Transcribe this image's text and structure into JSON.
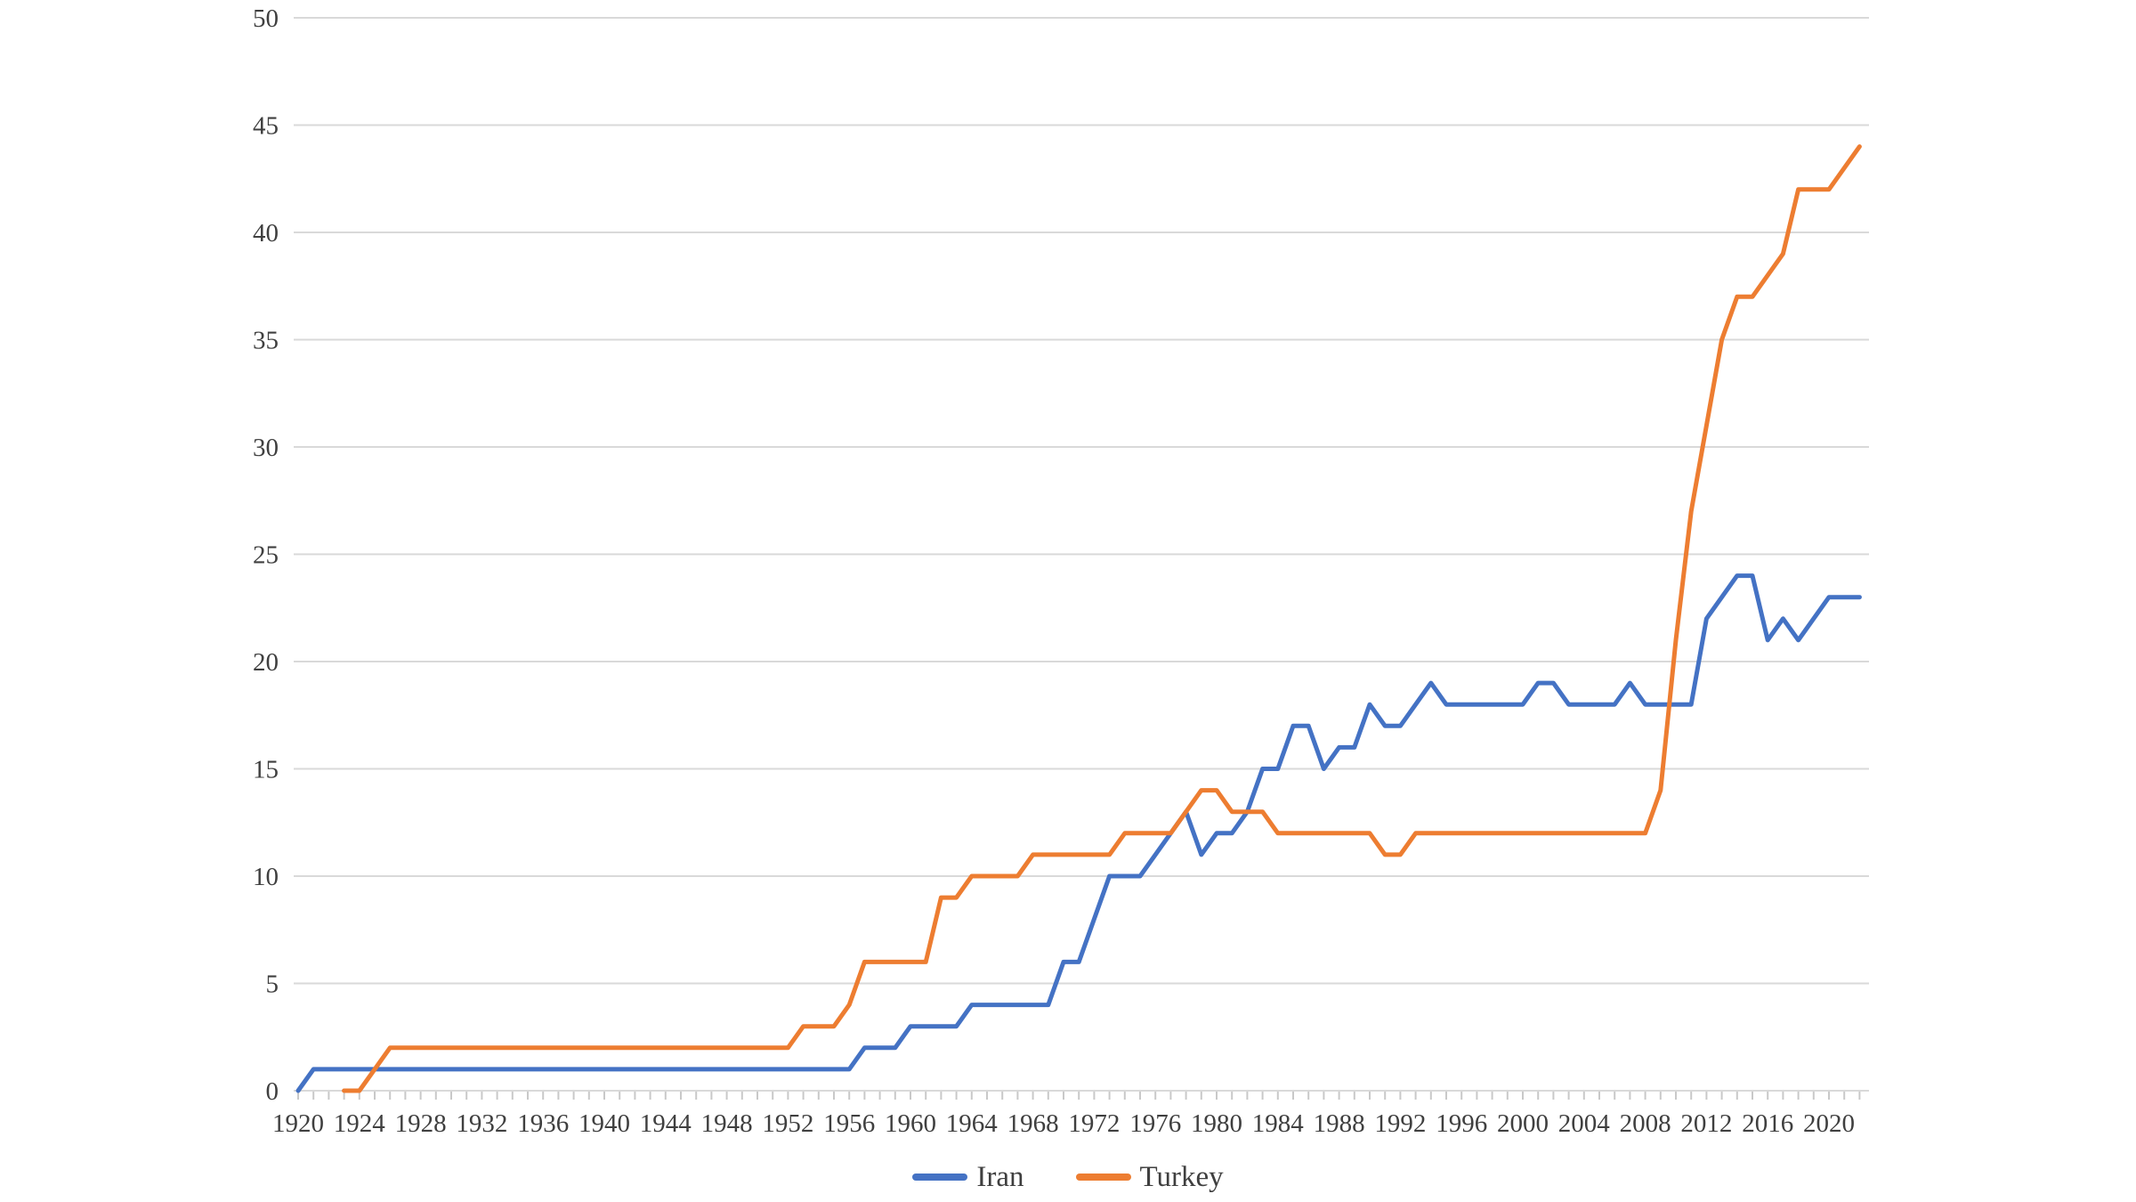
{
  "chart_data": {
    "type": "line",
    "title": "",
    "xlabel": "",
    "ylabel": "",
    "ylim": [
      0,
      50
    ],
    "grid": true,
    "legend_position": "bottom",
    "axis_line_color": "#D9D9D9",
    "tick_mark_color": "#C9C9C9",
    "label_color": "#3f3f3f",
    "y_tick_labels": [
      0,
      5,
      10,
      15,
      20,
      25,
      30,
      35,
      40,
      45,
      50
    ],
    "x_tick_labels": [
      1920,
      1924,
      1928,
      1932,
      1936,
      1940,
      1944,
      1948,
      1952,
      1956,
      1960,
      1964,
      1968,
      1972,
      1976,
      1980,
      1984,
      1988,
      1992,
      1996,
      2000,
      2004,
      2008,
      2012,
      2016,
      2020
    ],
    "categories": [
      1920,
      1921,
      1922,
      1923,
      1924,
      1925,
      1926,
      1927,
      1928,
      1929,
      1930,
      1931,
      1932,
      1933,
      1934,
      1935,
      1936,
      1937,
      1938,
      1939,
      1940,
      1941,
      1942,
      1943,
      1944,
      1945,
      1946,
      1947,
      1948,
      1949,
      1950,
      1951,
      1952,
      1953,
      1954,
      1955,
      1956,
      1957,
      1958,
      1959,
      1960,
      1961,
      1962,
      1963,
      1964,
      1965,
      1966,
      1967,
      1968,
      1969,
      1970,
      1971,
      1972,
      1973,
      1974,
      1975,
      1976,
      1977,
      1978,
      1979,
      1980,
      1981,
      1982,
      1983,
      1984,
      1985,
      1986,
      1987,
      1988,
      1989,
      1990,
      1991,
      1992,
      1993,
      1994,
      1995,
      1996,
      1997,
      1998,
      1999,
      2000,
      2001,
      2002,
      2003,
      2004,
      2005,
      2006,
      2007,
      2008,
      2009,
      2010,
      2011,
      2012,
      2013,
      2014,
      2015,
      2016,
      2017,
      2018,
      2019,
      2020,
      2021,
      2022
    ],
    "series": [
      {
        "name": "Iran",
        "color": "#4472C4",
        "values": [
          0,
          1,
          1,
          1,
          1,
          1,
          1,
          1,
          1,
          1,
          1,
          1,
          1,
          1,
          1,
          1,
          1,
          1,
          1,
          1,
          1,
          1,
          1,
          1,
          1,
          1,
          1,
          1,
          1,
          1,
          1,
          1,
          1,
          1,
          1,
          1,
          1,
          2,
          2,
          2,
          3,
          3,
          3,
          3,
          4,
          4,
          4,
          4,
          4,
          4,
          6,
          6,
          8,
          10,
          10,
          10,
          11,
          12,
          13,
          11,
          12,
          12,
          13,
          15,
          15,
          17,
          17,
          15,
          16,
          16,
          18,
          17,
          17,
          18,
          19,
          18,
          18,
          18,
          18,
          18,
          18,
          19,
          19,
          18,
          18,
          18,
          18,
          19,
          18,
          18,
          18,
          18,
          22,
          23,
          24,
          24,
          21,
          22,
          21,
          22,
          23,
          23,
          23
        ]
      },
      {
        "name": "Turkey",
        "color": "#ED7D31",
        "values": [
          null,
          null,
          null,
          0,
          0,
          1,
          2,
          2,
          2,
          2,
          2,
          2,
          2,
          2,
          2,
          2,
          2,
          2,
          2,
          2,
          2,
          2,
          2,
          2,
          2,
          2,
          2,
          2,
          2,
          2,
          2,
          2,
          2,
          3,
          3,
          3,
          4,
          6,
          6,
          6,
          6,
          6,
          9,
          9,
          10,
          10,
          10,
          10,
          11,
          11,
          11,
          11,
          11,
          11,
          12,
          12,
          12,
          12,
          13,
          14,
          14,
          13,
          13,
          13,
          12,
          12,
          12,
          12,
          12,
          12,
          12,
          11,
          11,
          12,
          12,
          12,
          12,
          12,
          12,
          12,
          12,
          12,
          12,
          12,
          12,
          12,
          12,
          12,
          12,
          14,
          21,
          27,
          31,
          35,
          37,
          37,
          38,
          39,
          42,
          42,
          42,
          43,
          44
        ]
      }
    ]
  },
  "legend": {
    "items": [
      {
        "label": "Iran",
        "color": "#4472C4"
      },
      {
        "label": "Turkey",
        "color": "#ED7D31"
      }
    ]
  }
}
